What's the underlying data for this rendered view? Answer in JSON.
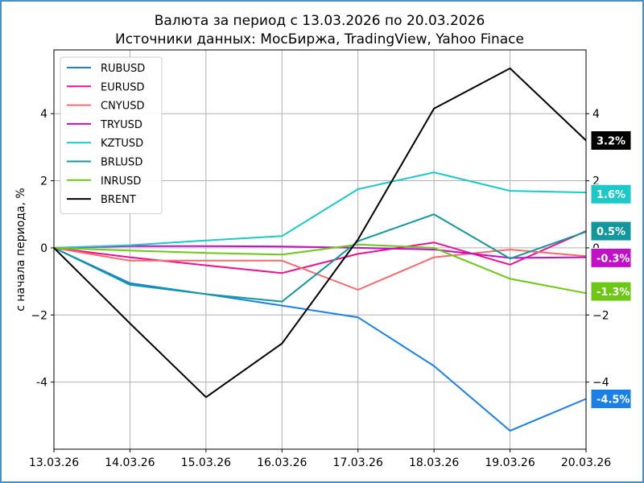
{
  "chart_data": {
    "type": "line",
    "title": "Валюта за период с 13.03.2026 по 20.03.2026",
    "subtitle": "Источники данных: МосБиржа, TradingView, Yahoo Finace",
    "ylabel": "с начала периода, %",
    "xlabel": "",
    "categories": [
      "13.03.26",
      "14.03.26",
      "15.03.26",
      "16.03.26",
      "17.03.26",
      "18.03.26",
      "19.03.26",
      "20.03.26"
    ],
    "ylim": [
      -6.0,
      5.9
    ],
    "yticks": [
      -4,
      -2,
      0,
      2,
      4
    ],
    "ytick_labels": [
      "-4",
      "−2",
      "0",
      "2",
      "4"
    ],
    "ytick_labels_right": [
      "−4",
      "−2",
      "0",
      "2",
      "4"
    ],
    "grid": true,
    "legend_position": "top-left",
    "series": [
      {
        "name": "RUBUSD",
        "color": "#1a80e6",
        "values": [
          0,
          -1.05,
          -1.38,
          -1.72,
          -2.07,
          -3.52,
          -5.45,
          -4.5
        ],
        "end_label": "-4.5%"
      },
      {
        "name": "EURUSD",
        "color": "#ee1090",
        "values": [
          0,
          -0.28,
          -0.52,
          -0.75,
          -0.18,
          0.16,
          -0.5,
          0.5
        ],
        "end_label": "0.5%"
      },
      {
        "name": "CNYUSD",
        "color": "#f56a6a",
        "values": [
          0,
          -0.38,
          -0.38,
          -0.38,
          -1.25,
          -0.28,
          -0.05,
          -0.25
        ],
        "end_label": ""
      },
      {
        "name": "TRYUSD",
        "color": "#c010c8",
        "values": [
          0,
          0.05,
          0.05,
          0.04,
          0.0,
          -0.05,
          -0.3,
          -0.28
        ],
        "end_label": "-0.3%"
      },
      {
        "name": "KZTUSD",
        "color": "#1cc8c8",
        "values": [
          0,
          0.08,
          0.22,
          0.35,
          1.75,
          2.25,
          1.7,
          1.65
        ],
        "end_label": "1.6%"
      },
      {
        "name": "BRLUSD",
        "color": "#14979c",
        "values": [
          0,
          -1.1,
          -1.38,
          -1.6,
          0.2,
          1.0,
          -0.32,
          0.48
        ],
        "end_label": ""
      },
      {
        "name": "INRUSD",
        "color": "#6cc814",
        "values": [
          0,
          -0.08,
          -0.15,
          -0.2,
          0.1,
          0.0,
          -0.92,
          -1.35
        ],
        "end_label": "-1.3%"
      },
      {
        "name": "BRENT",
        "color": "#000000",
        "values": [
          0,
          -2.25,
          -4.45,
          -2.85,
          0.25,
          4.15,
          5.35,
          3.2
        ],
        "end_label": "3.2%"
      }
    ],
    "end_badges": [
      {
        "series": "BRENT",
        "label": "3.2%",
        "color": "#000000",
        "value": 3.2
      },
      {
        "series": "KZTUSD",
        "label": "1.6%",
        "color": "#1cc8c8",
        "value": 1.6
      },
      {
        "series": "BRLUSD",
        "label": "0.5%",
        "color": "#14979c",
        "value": 0.5
      },
      {
        "series": "TRYUSD",
        "label": "-0.3%",
        "color": "#c010c8",
        "value": -0.3
      },
      {
        "series": "INRUSD",
        "label": "-1.3%",
        "color": "#6cc814",
        "value": -1.3
      },
      {
        "series": "RUBUSD",
        "label": "-4.5%",
        "color": "#1a80e6",
        "value": -4.5
      }
    ]
  }
}
